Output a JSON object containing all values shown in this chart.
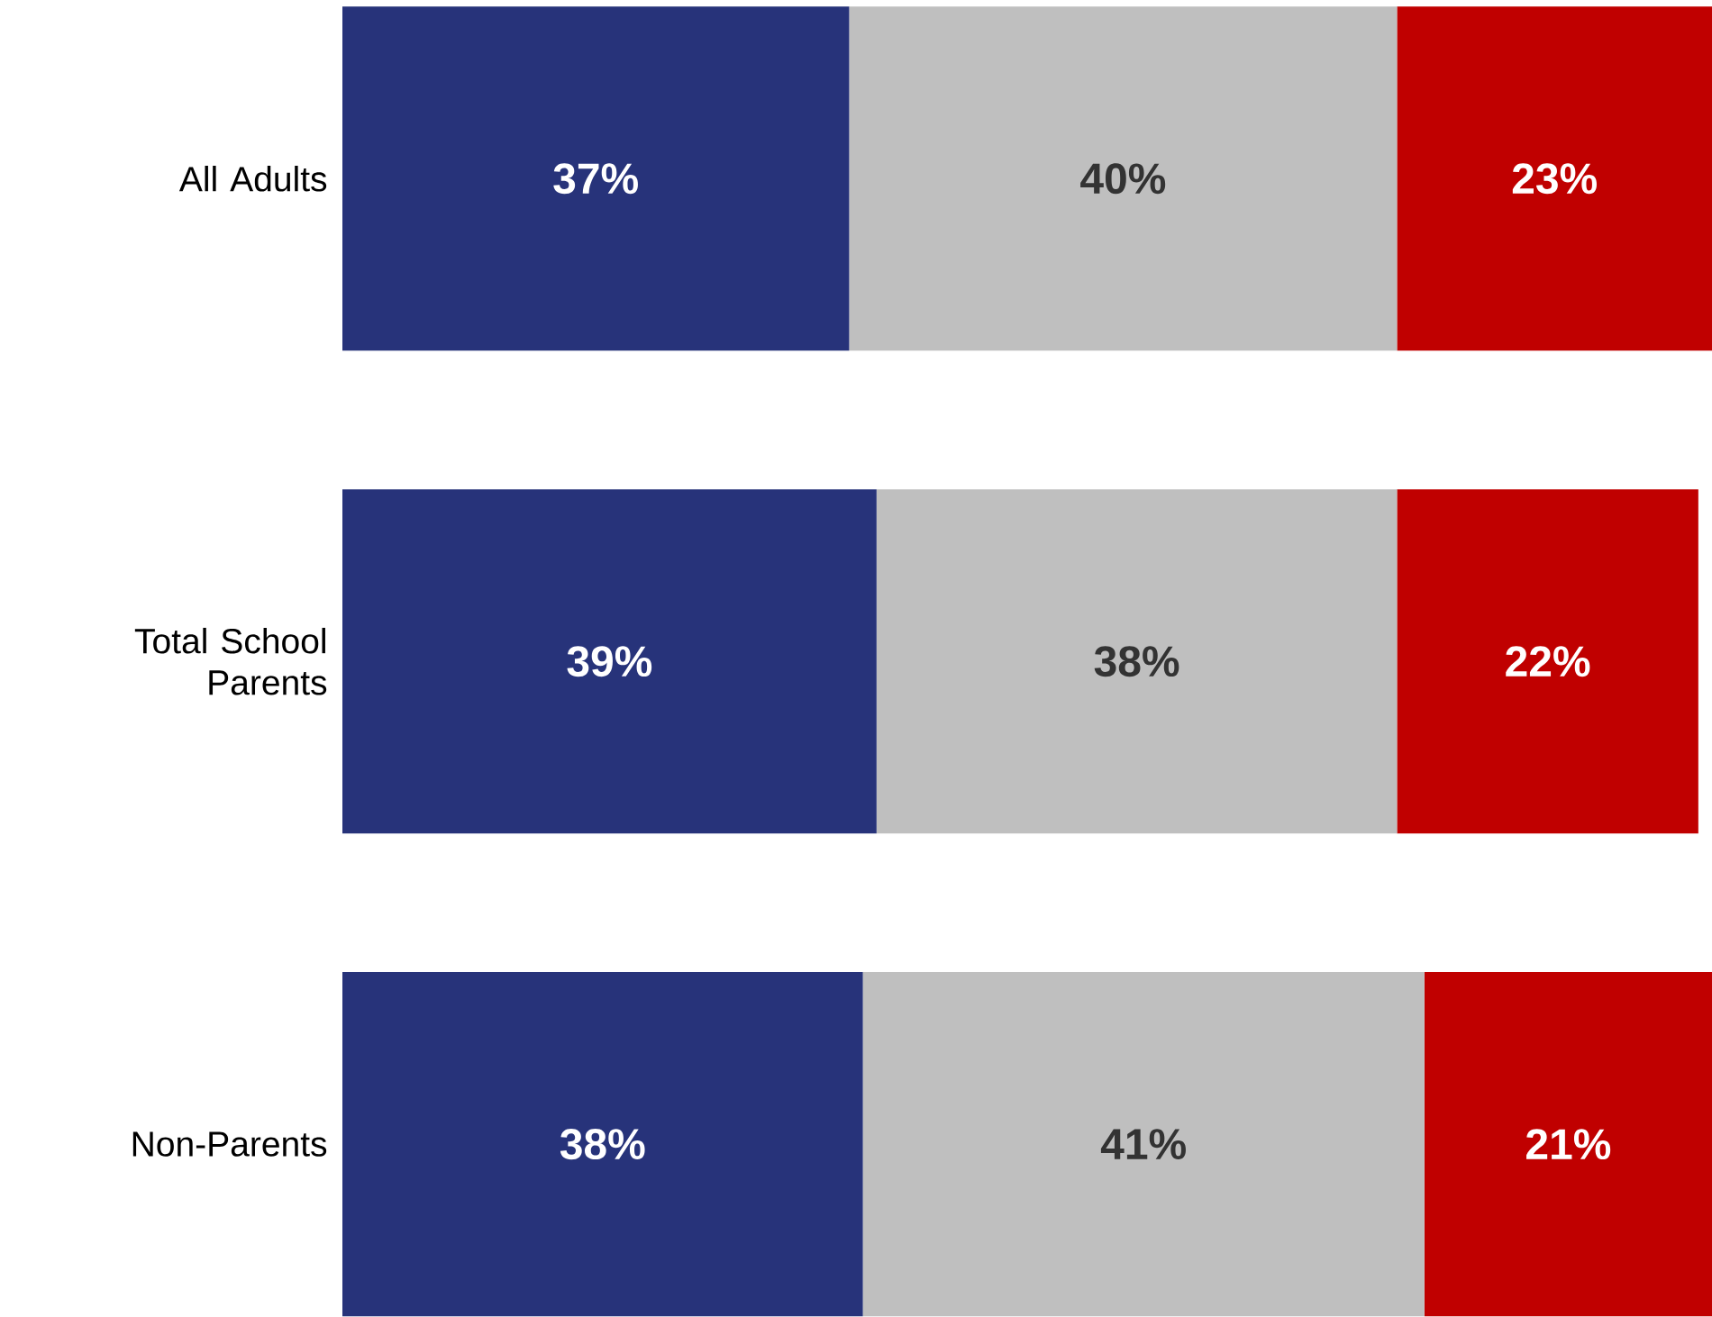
{
  "chart_data": {
    "type": "bar",
    "orientation": "horizontal",
    "stacked": true,
    "categories": [
      "All Adults",
      "Total School Parents",
      "Non-Parents"
    ],
    "series": [
      {
        "color": "#27337a",
        "values": [
          37,
          39,
          38
        ],
        "value_labels": [
          "37%",
          "39%",
          "38%"
        ]
      },
      {
        "color": "#bfbfbf",
        "values": [
          40,
          38,
          41
        ],
        "value_labels": [
          "40%",
          "38%",
          "41%"
        ]
      },
      {
        "color": "#c00000",
        "values": [
          23,
          22,
          21
        ],
        "value_labels": [
          "23%",
          "22%",
          "21%"
        ]
      }
    ]
  }
}
